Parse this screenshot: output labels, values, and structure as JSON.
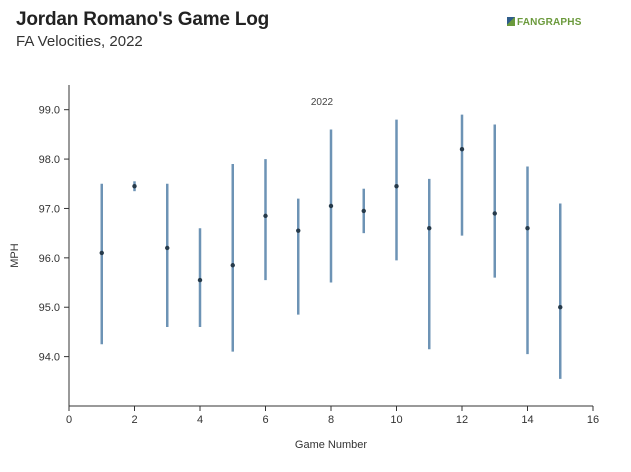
{
  "title": "Jordan Romano's Game Log",
  "subtitle": "FA Velocities, 2022",
  "brand": "FANGRAPHS",
  "colors": {
    "range_line": "#6d93b5",
    "point": "#263a4a",
    "axis": "#333333",
    "brand": "#6b9a3c"
  },
  "chart_data": {
    "type": "scatter",
    "series_label": "2022",
    "xlabel": "Game Number",
    "ylabel": "MPH",
    "xlim": [
      0,
      16
    ],
    "ylim": [
      93.0,
      99.5
    ],
    "x_ticks": [
      "0",
      "2",
      "4",
      "6",
      "8",
      "10",
      "12",
      "14",
      "16"
    ],
    "y_ticks": [
      "94.0",
      "95.0",
      "96.0",
      "97.0",
      "98.0",
      "99.0"
    ],
    "grid": false,
    "points": [
      {
        "x": 1,
        "mean": 96.1,
        "min": 94.25,
        "max": 97.5
      },
      {
        "x": 2,
        "mean": 97.45,
        "min": 97.35,
        "max": 97.55
      },
      {
        "x": 3,
        "mean": 96.2,
        "min": 94.6,
        "max": 97.5
      },
      {
        "x": 4,
        "mean": 95.55,
        "min": 94.6,
        "max": 96.6
      },
      {
        "x": 5,
        "mean": 95.85,
        "min": 94.1,
        "max": 97.9
      },
      {
        "x": 6,
        "mean": 96.85,
        "min": 95.55,
        "max": 98.0
      },
      {
        "x": 7,
        "mean": 96.55,
        "min": 94.85,
        "max": 97.2
      },
      {
        "x": 8,
        "mean": 97.05,
        "min": 95.5,
        "max": 98.6
      },
      {
        "x": 9,
        "mean": 96.95,
        "min": 96.5,
        "max": 97.4
      },
      {
        "x": 10,
        "mean": 97.45,
        "min": 95.95,
        "max": 98.8
      },
      {
        "x": 11,
        "mean": 96.6,
        "min": 94.15,
        "max": 97.6
      },
      {
        "x": 12,
        "mean": 98.2,
        "min": 96.45,
        "max": 98.9
      },
      {
        "x": 13,
        "mean": 96.9,
        "min": 95.6,
        "max": 98.7
      },
      {
        "x": 14,
        "mean": 96.6,
        "min": 94.05,
        "max": 97.85
      },
      {
        "x": 15,
        "mean": 95.0,
        "min": 93.55,
        "max": 97.1
      }
    ]
  }
}
